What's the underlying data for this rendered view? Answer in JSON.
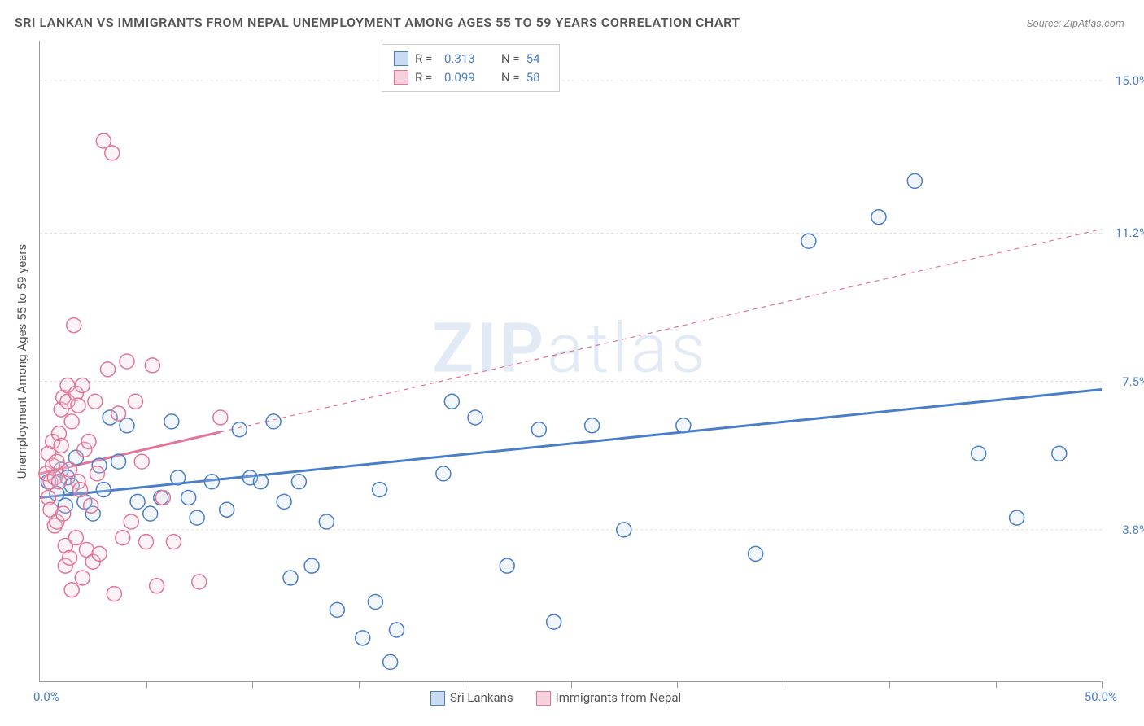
{
  "title": "SRI LANKAN VS IMMIGRANTS FROM NEPAL UNEMPLOYMENT AMONG AGES 55 TO 59 YEARS CORRELATION CHART",
  "source": "Source: ZipAtlas.com",
  "ylabel": "Unemployment Among Ages 55 to 59 years",
  "watermark_a": "ZIP",
  "watermark_b": "atlas",
  "chart": {
    "type": "scatter",
    "xlim": [
      0,
      50
    ],
    "ylim": [
      0,
      16
    ],
    "x_axis_label_min": "0.0%",
    "x_axis_label_max": "50.0%",
    "y_ticks": [
      {
        "v": 3.8,
        "label": "3.8%"
      },
      {
        "v": 7.5,
        "label": "7.5%"
      },
      {
        "v": 11.2,
        "label": "11.2%"
      },
      {
        "v": 15.0,
        "label": "15.0%"
      }
    ],
    "x_tick_positions": [
      0,
      5,
      10,
      15,
      20,
      25,
      30,
      35,
      40,
      45,
      50
    ],
    "background_color": "#ffffff",
    "grid_color": "#dddddd",
    "axis_color": "#999999",
    "label_color": "#555555",
    "value_color": "#4a7ec9",
    "marker_radius": 9,
    "marker_stroke_width": 1.5,
    "marker_fill_opacity": 0.25,
    "trend_line_width": 3,
    "trend_dash_width": 1.2,
    "legend_top": [
      {
        "swatch_fill": "#c8dbf2",
        "swatch_stroke": "#4a7ec9",
        "r_label": "R =",
        "r_value": "0.313",
        "n_label": "N =",
        "n_value": "54"
      },
      {
        "swatch_fill": "#f6d0da",
        "swatch_stroke": "#e37697",
        "r_label": "R =",
        "r_value": "0.099",
        "n_label": "N =",
        "n_value": "58"
      }
    ],
    "legend_bottom": [
      {
        "swatch_fill": "#c8dbf2",
        "swatch_stroke": "#4a7ec9",
        "label": "Sri Lankans"
      },
      {
        "swatch_fill": "#f6d0da",
        "swatch_stroke": "#e37697",
        "label": "Immigrants from Nepal"
      }
    ],
    "series": [
      {
        "name": "Sri Lankans",
        "color_stroke": "#4a7ec9",
        "color_fill": "#c8dbf2",
        "trend": {
          "x1": 0,
          "y1": 4.6,
          "x2": 50,
          "y2": 7.3,
          "x_solid_max": 50
        },
        "points": [
          [
            0.4,
            5.0
          ],
          [
            0.8,
            4.7
          ],
          [
            1.0,
            5.3
          ],
          [
            1.2,
            4.4
          ],
          [
            1.3,
            5.1
          ],
          [
            1.5,
            4.9
          ],
          [
            1.7,
            5.6
          ],
          [
            2.1,
            4.5
          ],
          [
            2.5,
            4.2
          ],
          [
            2.8,
            5.4
          ],
          [
            3.0,
            4.8
          ],
          [
            3.3,
            6.6
          ],
          [
            3.7,
            5.5
          ],
          [
            4.1,
            6.4
          ],
          [
            4.6,
            4.5
          ],
          [
            5.2,
            4.2
          ],
          [
            5.7,
            4.6
          ],
          [
            6.2,
            6.5
          ],
          [
            6.5,
            5.1
          ],
          [
            7.0,
            4.6
          ],
          [
            7.4,
            4.1
          ],
          [
            8.1,
            5.0
          ],
          [
            8.8,
            4.3
          ],
          [
            9.4,
            6.3
          ],
          [
            9.9,
            5.1
          ],
          [
            10.4,
            5.0
          ],
          [
            11.0,
            6.5
          ],
          [
            11.5,
            4.5
          ],
          [
            11.8,
            2.6
          ],
          [
            12.2,
            5.0
          ],
          [
            12.8,
            2.9
          ],
          [
            13.5,
            4.0
          ],
          [
            14.0,
            1.8
          ],
          [
            15.2,
            1.1
          ],
          [
            15.8,
            2.0
          ],
          [
            16.0,
            4.8
          ],
          [
            16.5,
            0.5
          ],
          [
            16.8,
            1.3
          ],
          [
            19.0,
            5.2
          ],
          [
            19.4,
            7.0
          ],
          [
            20.5,
            6.6
          ],
          [
            22.0,
            2.9
          ],
          [
            23.5,
            6.3
          ],
          [
            24.2,
            1.5
          ],
          [
            26.0,
            6.4
          ],
          [
            27.5,
            3.8
          ],
          [
            30.3,
            6.4
          ],
          [
            33.7,
            3.2
          ],
          [
            36.2,
            11.0
          ],
          [
            39.5,
            11.6
          ],
          [
            41.2,
            12.5
          ],
          [
            44.2,
            5.7
          ],
          [
            46.0,
            4.1
          ],
          [
            48.0,
            5.7
          ]
        ]
      },
      {
        "name": "Immigrants from Nepal",
        "color_stroke": "#e37697",
        "color_fill": "#f6d0da",
        "trend": {
          "x1": 0,
          "y1": 5.2,
          "x2": 50,
          "y2": 11.3,
          "x_solid_max": 8.5
        },
        "points": [
          [
            0.3,
            5.2
          ],
          [
            0.4,
            5.7
          ],
          [
            0.4,
            4.6
          ],
          [
            0.5,
            5.0
          ],
          [
            0.5,
            4.3
          ],
          [
            0.6,
            5.4
          ],
          [
            0.6,
            6.0
          ],
          [
            0.7,
            5.1
          ],
          [
            0.7,
            3.9
          ],
          [
            0.8,
            5.5
          ],
          [
            0.8,
            4.0
          ],
          [
            0.9,
            6.2
          ],
          [
            0.9,
            5.0
          ],
          [
            1.0,
            5.9
          ],
          [
            1.0,
            6.8
          ],
          [
            1.1,
            7.1
          ],
          [
            1.1,
            4.2
          ],
          [
            1.2,
            3.4
          ],
          [
            1.2,
            2.9
          ],
          [
            1.3,
            7.0
          ],
          [
            1.3,
            7.4
          ],
          [
            1.4,
            5.3
          ],
          [
            1.4,
            3.1
          ],
          [
            1.5,
            6.5
          ],
          [
            1.5,
            2.3
          ],
          [
            1.6,
            8.9
          ],
          [
            1.7,
            7.2
          ],
          [
            1.7,
            3.6
          ],
          [
            1.8,
            5.0
          ],
          [
            1.8,
            6.9
          ],
          [
            1.9,
            4.8
          ],
          [
            2.0,
            7.4
          ],
          [
            2.0,
            2.6
          ],
          [
            2.1,
            5.8
          ],
          [
            2.2,
            3.3
          ],
          [
            2.3,
            6.0
          ],
          [
            2.4,
            4.4
          ],
          [
            2.5,
            3.0
          ],
          [
            2.6,
            7.0
          ],
          [
            2.7,
            5.2
          ],
          [
            2.8,
            3.2
          ],
          [
            3.0,
            13.5
          ],
          [
            3.2,
            7.8
          ],
          [
            3.4,
            13.2
          ],
          [
            3.5,
            2.2
          ],
          [
            3.7,
            6.7
          ],
          [
            3.9,
            3.6
          ],
          [
            4.1,
            8.0
          ],
          [
            4.3,
            4.0
          ],
          [
            4.5,
            7.0
          ],
          [
            4.8,
            5.5
          ],
          [
            5.0,
            3.5
          ],
          [
            5.3,
            7.9
          ],
          [
            5.5,
            2.4
          ],
          [
            5.8,
            4.6
          ],
          [
            6.3,
            3.5
          ],
          [
            7.5,
            2.5
          ],
          [
            8.5,
            6.6
          ]
        ]
      }
    ]
  }
}
